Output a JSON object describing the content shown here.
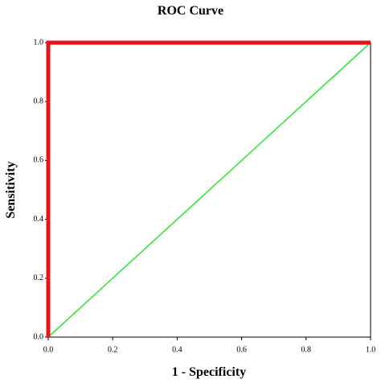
{
  "chart_data": {
    "type": "line",
    "title": "ROC Curve",
    "xlabel": "1 - Specificity",
    "ylabel": "Sensitivity",
    "xlim": [
      0,
      1
    ],
    "ylim": [
      0,
      1
    ],
    "xticks": [
      {
        "value": 0,
        "label": "0.0"
      },
      {
        "value": 0.2,
        "label": "0.2"
      },
      {
        "value": 0.4,
        "label": "0.4"
      },
      {
        "value": 0.6,
        "label": "0.6"
      },
      {
        "value": 0.8,
        "label": "0.8"
      },
      {
        "value": 1,
        "label": "1.0"
      }
    ],
    "yticks": [
      {
        "value": 0,
        "label": "0.0"
      },
      {
        "value": 0.2,
        "label": "0.2"
      },
      {
        "value": 0.4,
        "label": "0.4"
      },
      {
        "value": 0.6,
        "label": "0.6"
      },
      {
        "value": 0.8,
        "label": "0.8"
      },
      {
        "value": 1,
        "label": "1.0"
      }
    ],
    "series": [
      {
        "color": "#e8141c",
        "x": [
          0,
          0,
          1
        ],
        "values": [
          0,
          1,
          1
        ]
      },
      {
        "color": "#33e833",
        "x": [
          0,
          1
        ],
        "values": [
          0,
          1
        ]
      }
    ]
  }
}
